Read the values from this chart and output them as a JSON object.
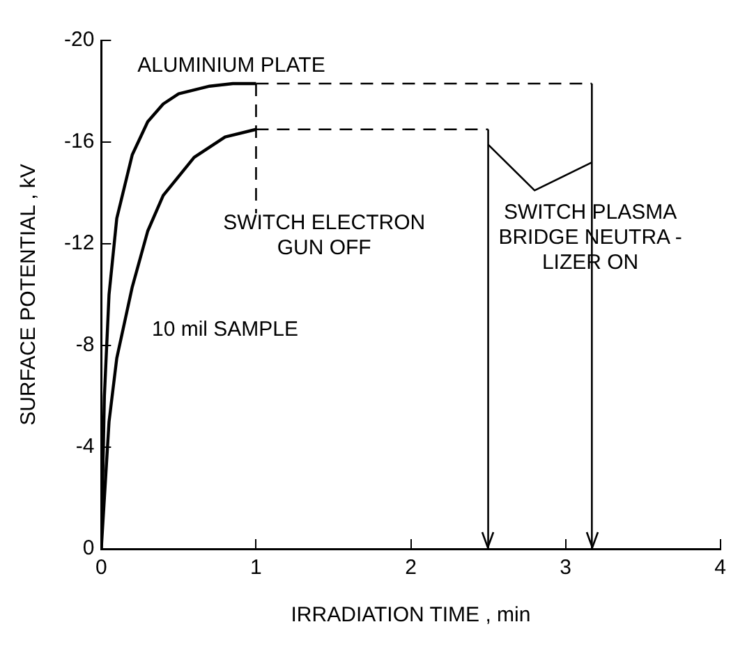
{
  "chart_data": {
    "type": "line",
    "xlabel": "IRRADIATION TIME , min",
    "ylabel": "SURFACE POTENTIAL , kV",
    "xlim": [
      0,
      4
    ],
    "xticks": [
      0,
      1,
      2,
      3,
      4
    ],
    "ylim": [
      0,
      -20
    ],
    "yticks": [
      0,
      -4,
      -8,
      -12,
      -16,
      -20
    ],
    "grid": false,
    "legend": false,
    "marker": "none",
    "series": [
      {
        "color": "#000000",
        "x": [
          0,
          0.02,
          0.05,
          0.1,
          0.2,
          0.3,
          0.4,
          0.5,
          0.7,
          0.85,
          1
        ],
        "values": [
          0,
          -6,
          -10,
          -13,
          -15.5,
          -16.8,
          -17.5,
          -17.9,
          -18.2,
          -18.3,
          -18.3
        ]
      },
      {
        "color": "#000000",
        "x": [
          0,
          0.05,
          0.1,
          0.2,
          0.3,
          0.4,
          0.6,
          0.8,
          1
        ],
        "values": [
          0,
          -5,
          -7.5,
          -10.3,
          -12.5,
          -13.9,
          -15.4,
          -16.2,
          -16.5
        ]
      },
      {
        "color": "#000000",
        "line_style": "dashed",
        "x": [
          1,
          3.17
        ],
        "values": [
          -18.3,
          -18.3
        ]
      },
      {
        "color": "#000000",
        "line_style": "dashed",
        "x": [
          1,
          2.5
        ],
        "values": [
          -16.5,
          -16.5
        ]
      },
      {
        "color": "#000000",
        "line_style": "dashed",
        "x": [
          1,
          1
        ],
        "values": [
          -18.3,
          -13.2
        ]
      },
      {
        "color": "#000000",
        "x": [
          2.5,
          2.8,
          3.17
        ],
        "values": [
          -15.9,
          -14.1,
          -15.2
        ]
      }
    ],
    "ref_lines": [
      {
        "axis": "x",
        "value": 2.5
      },
      {
        "axis": "x",
        "value": 3.17
      }
    ],
    "annotations": [
      "ALUMINIUM PLATE",
      "SWITCH ELECTRON\nGUN OFF",
      "SWITCH PLASMA\nBRIDGE NEUTRA -\nLIZER ON",
      "10 mil SAMPLE"
    ]
  }
}
